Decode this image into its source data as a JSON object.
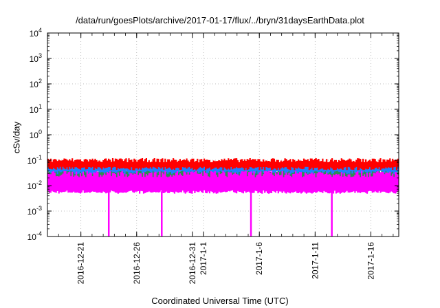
{
  "chart_data": {
    "type": "line",
    "title": "/data/run/goesPlots/archive/2017-01-17/flux/../bryn/31daysEarthData.plot",
    "xlabel": "Coordinated Universal Time (UTC)",
    "ylabel": "cSv/day",
    "y_scale": "log",
    "ylim": [
      0.0001,
      10000
    ],
    "xlim": [
      "2016-12-18",
      "2017-01-18T12:00"
    ],
    "grid": true,
    "y_ticks": [
      {
        "base": "10",
        "exp": "-4"
      },
      {
        "base": "10",
        "exp": "-3"
      },
      {
        "base": "10",
        "exp": "-2"
      },
      {
        "base": "10",
        "exp": "-1"
      },
      {
        "base": "10",
        "exp": "0"
      },
      {
        "base": "10",
        "exp": "1"
      },
      {
        "base": "10",
        "exp": "2"
      },
      {
        "base": "10",
        "exp": "3"
      },
      {
        "base": "10",
        "exp": "4"
      }
    ],
    "x_ticks": [
      {
        "label": "2016-12-21",
        "date": "2016-12-21"
      },
      {
        "label": "2016-12-26",
        "date": "2016-12-26"
      },
      {
        "label": "2016-12-31",
        "date": "2016-12-31"
      },
      {
        "label": "2017-1-1",
        "date": "2017-01-01"
      },
      {
        "label": "2017-1-6",
        "date": "2017-01-06"
      },
      {
        "label": "2017-1-11",
        "date": "2017-01-11"
      },
      {
        "label": "2017-1-16",
        "date": "2017-01-16"
      }
    ],
    "series": [
      {
        "color": "#ff0000",
        "band": [
          0.05,
          0.11
        ]
      },
      {
        "color": "#1e7fff",
        "band": [
          0.035,
          0.075
        ]
      },
      {
        "color": "#2e8b57",
        "band": [
          0.02,
          0.045
        ]
      },
      {
        "color": "#ff00ff",
        "band": [
          0.006,
          0.035
        ]
      }
    ],
    "dropouts": [
      "2016-12-23T12:00",
      "2016-12-28T06:00",
      "2017-01-05T06:00",
      "2017-01-12T12:00"
    ],
    "dropout_min": 0.0001
  }
}
